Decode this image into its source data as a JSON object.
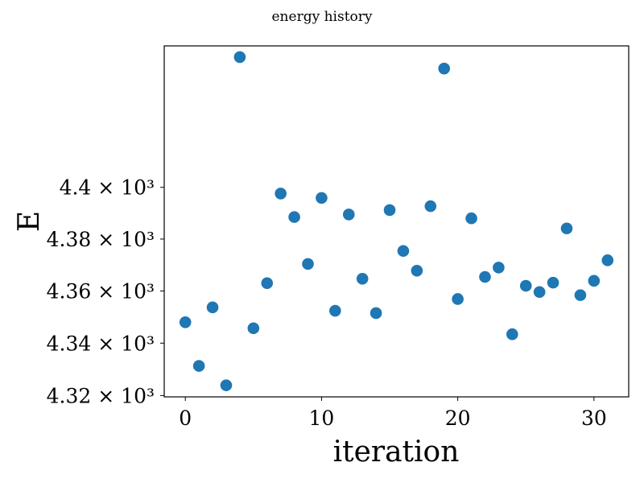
{
  "chart_data": {
    "type": "scatter",
    "title": "energy history",
    "xlabel": "iteration",
    "ylabel": "E",
    "x": [
      0,
      1,
      2,
      3,
      4,
      5,
      6,
      7,
      8,
      9,
      10,
      11,
      12,
      13,
      14,
      15,
      16,
      17,
      18,
      19,
      20,
      21,
      22,
      23,
      24,
      25,
      26,
      27,
      28,
      29,
      30,
      31
    ],
    "y": [
      4348.0,
      4331.3,
      4353.7,
      4323.9,
      4450.8,
      4345.7,
      4363.0,
      4397.6,
      4388.5,
      4370.4,
      4395.9,
      4352.4,
      4389.5,
      4364.7,
      4351.5,
      4391.2,
      4375.4,
      4367.8,
      4392.7,
      4446.3,
      4356.9,
      4388.0,
      4365.4,
      4369.0,
      4343.4,
      4362.0,
      4359.6,
      4363.2,
      4384.1,
      4358.4,
      4363.9,
      4371.8
    ],
    "xlim": [
      -1.55,
      32.55
    ],
    "ylim": [
      4319.5,
      4455.2
    ],
    "xticks": [
      0,
      10,
      20,
      30
    ],
    "xtick_labels": [
      "0",
      "10",
      "20",
      "30"
    ],
    "yticks": [
      4320,
      4340,
      4360,
      4380,
      4400
    ],
    "ytick_labels": [
      "4.32 × 10³",
      "4.34 × 10³",
      "4.36 × 10³",
      "4.38 × 10³",
      "4.4 × 10³"
    ],
    "yscale": "log",
    "grid": false,
    "marker_color": "#1f77b4"
  }
}
